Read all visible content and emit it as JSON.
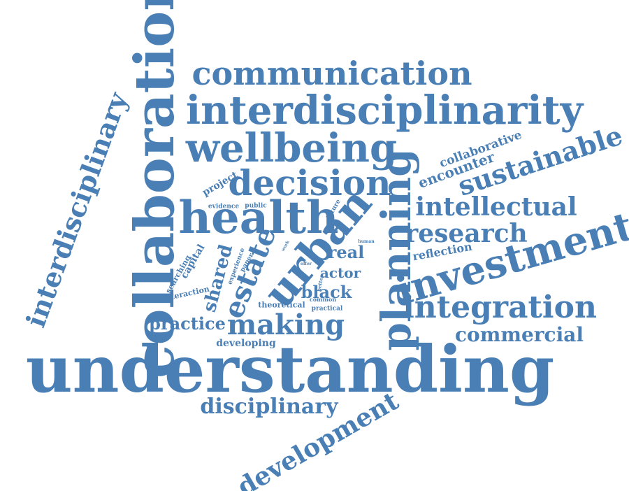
{
  "colors": {
    "word": "#4a7fb5",
    "background": "#ffffff"
  },
  "words": [
    {
      "id": "understanding",
      "text": "understanding"
    },
    {
      "id": "collaboration",
      "text": "collaboration"
    },
    {
      "id": "interdisciplinarity",
      "text": "interdisciplinarity"
    },
    {
      "id": "communication",
      "text": "communication"
    },
    {
      "id": "wellbeing",
      "text": "wellbeing"
    },
    {
      "id": "decision",
      "text": "decision"
    },
    {
      "id": "health",
      "text": "health"
    },
    {
      "id": "planning",
      "text": "planning"
    },
    {
      "id": "urban",
      "text": "urban"
    },
    {
      "id": "investment",
      "text": "investment"
    },
    {
      "id": "interdisciplinary",
      "text": "interdisciplinary"
    },
    {
      "id": "integration",
      "text": "integration"
    },
    {
      "id": "sustainable",
      "text": "sustainable"
    },
    {
      "id": "intellectual",
      "text": "intellectual"
    },
    {
      "id": "research",
      "text": "research"
    },
    {
      "id": "making",
      "text": "making"
    },
    {
      "id": "estate",
      "text": "estate"
    },
    {
      "id": "development",
      "text": "development"
    },
    {
      "id": "disciplinary",
      "text": "disciplinary"
    },
    {
      "id": "commercial",
      "text": "commercial"
    },
    {
      "id": "practice",
      "text": "practice"
    },
    {
      "id": "shared",
      "text": "shared"
    },
    {
      "id": "real",
      "text": "real"
    },
    {
      "id": "black",
      "text": "black"
    },
    {
      "id": "actor",
      "text": "actor"
    },
    {
      "id": "encounter",
      "text": "encounter"
    },
    {
      "id": "collaborative",
      "text": "collaborative"
    },
    {
      "id": "reflection",
      "text": "reflection"
    },
    {
      "id": "developing",
      "text": "developing"
    },
    {
      "id": "project",
      "text": "project"
    },
    {
      "id": "capital",
      "text": "capital"
    },
    {
      "id": "searching",
      "text": "searching"
    },
    {
      "id": "interaction",
      "text": "interaction"
    },
    {
      "id": "theoretical",
      "text": "theoretical"
    },
    {
      "id": "practical",
      "text": "practical"
    },
    {
      "id": "evidence",
      "text": "evidence"
    },
    {
      "id": "public",
      "text": "public"
    },
    {
      "id": "future",
      "text": "future"
    },
    {
      "id": "experience",
      "text": "experience"
    },
    {
      "id": "paper",
      "text": "paper"
    },
    {
      "id": "work",
      "text": "work"
    },
    {
      "id": "human",
      "text": "human"
    },
    {
      "id": "offer",
      "text": "offer"
    },
    {
      "id": "better",
      "text": "better"
    },
    {
      "id": "common",
      "text": "common"
    }
  ]
}
